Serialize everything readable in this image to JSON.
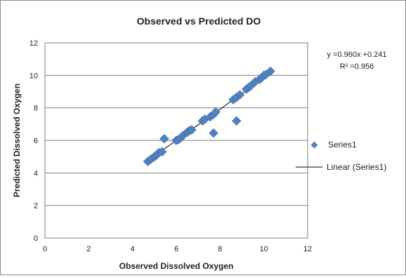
{
  "chart_data": {
    "type": "scatter",
    "title": "Observed vs Predicted DO",
    "xlabel": "Observed Dissolved  Oxygen",
    "ylabel": "Predicted Dissolved  Oxygen",
    "xlim": [
      0,
      12
    ],
    "ylim": [
      0,
      12
    ],
    "x_ticks": [
      "0",
      "2",
      "4",
      "6",
      "8",
      "10",
      "12"
    ],
    "y_ticks": [
      "0",
      "2",
      "4",
      "6",
      "8",
      "10",
      "12"
    ],
    "grid": "horizontal",
    "marker_color": "#4f81bd",
    "trendline_color": "#000000",
    "series": [
      {
        "name": "Series1",
        "x": [
          4.7,
          4.85,
          5.0,
          5.1,
          5.2,
          5.35,
          5.45,
          6.0,
          6.1,
          6.2,
          6.3,
          6.5,
          6.6,
          6.7,
          7.2,
          7.3,
          7.55,
          7.7,
          7.8,
          7.7,
          8.6,
          8.75,
          8.9,
          9.2,
          9.3,
          9.4,
          9.6,
          9.8,
          9.9,
          10.0,
          10.1,
          10.3,
          8.75
        ],
        "y": [
          4.7,
          4.85,
          5.0,
          5.1,
          5.25,
          5.3,
          6.1,
          6.0,
          6.05,
          6.15,
          6.3,
          6.5,
          6.6,
          6.65,
          7.2,
          7.3,
          7.45,
          7.6,
          7.75,
          6.45,
          8.5,
          8.65,
          8.8,
          9.15,
          9.25,
          9.35,
          9.6,
          9.75,
          9.85,
          10.0,
          10.05,
          10.25,
          7.2
        ]
      }
    ],
    "trendline": {
      "name": "Linear (Series1)",
      "slope": 0.96,
      "intercept": 0.241,
      "x_range": [
        4.7,
        10.3
      ],
      "equation": "y =0.960x +0.241",
      "r_squared": "R² =0.956"
    },
    "legend": {
      "placement": "right",
      "items": [
        "Series1",
        "Linear (Series1)"
      ]
    }
  }
}
